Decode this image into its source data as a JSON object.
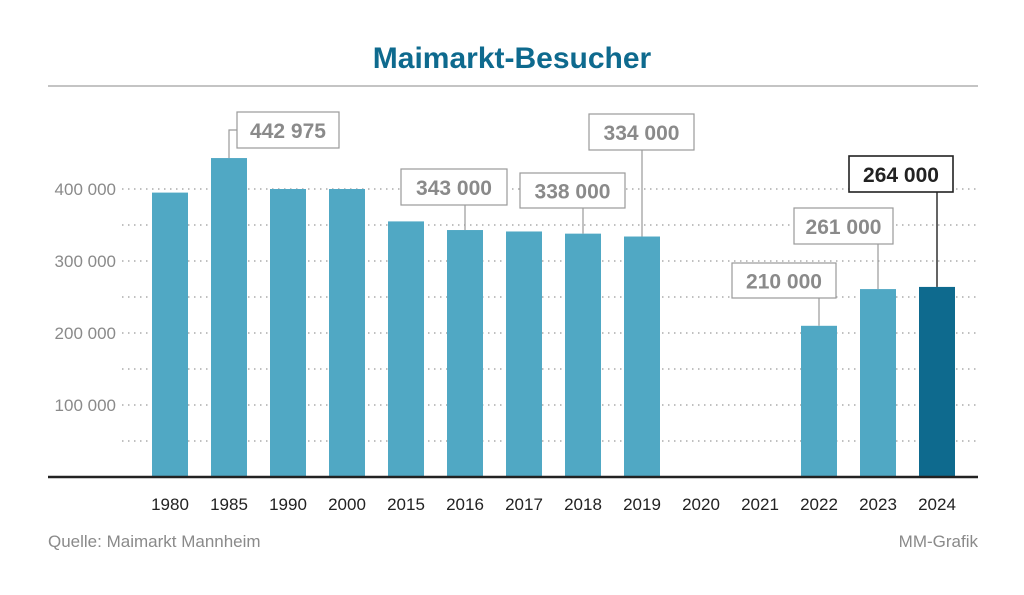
{
  "chart_data": {
    "type": "bar",
    "title": "Maimarkt-Besucher",
    "categories": [
      "1980",
      "1985",
      "1990",
      "2000",
      "2015",
      "2016",
      "2017",
      "2018",
      "2019",
      "2020",
      "2021",
      "2022",
      "2023",
      "2024"
    ],
    "values": [
      395000,
      442975,
      400000,
      400000,
      355000,
      343000,
      341000,
      338000,
      334000,
      null,
      null,
      210000,
      261000,
      264000
    ],
    "labels": {
      "1985": "442 975",
      "2016": "343 000",
      "2018": "338 000",
      "2019": "334 000",
      "2022": "210 000",
      "2023": "261 000",
      "2024": "264 000"
    },
    "highlight": "2024",
    "yticks": [
      100000,
      200000,
      300000,
      400000
    ],
    "ytick_labels": [
      "100 000",
      "200 000",
      "300 000",
      "400 000"
    ],
    "ylim": [
      0,
      500000
    ],
    "grid": true,
    "colors": {
      "bar": "#50a8c4",
      "highlight_bar": "#0e6a8e",
      "title": "#0e6a8e"
    },
    "source": "Quelle: Maimarkt Mannheim",
    "credit": "MM-Grafik"
  }
}
